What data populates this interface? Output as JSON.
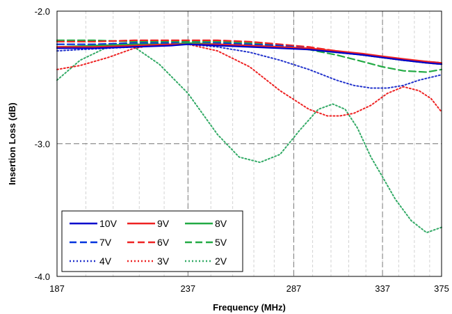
{
  "chart_data": {
    "type": "line",
    "xlabel": "Frequency (MHz)",
    "ylabel": "Insertion Loss (dB)",
    "xlim": [
      187,
      375
    ],
    "ylim": [
      -4.0,
      -2.0
    ],
    "x_tick_labels": [
      "187",
      "237",
      "287",
      "337",
      "375"
    ],
    "y_tick_labels": [
      "-2.0",
      "-3.0",
      "-4.0"
    ],
    "x_ticks": [
      187,
      237,
      287,
      337,
      375
    ],
    "y_ticks": [
      -2.0,
      -3.0,
      -4.0
    ],
    "x_scale": "log",
    "grid": true,
    "legend_position": "bottom-left",
    "series": [
      {
        "name": "10V",
        "color": "#0000cc",
        "dash": "solid",
        "x": [
          187,
          200,
          215,
          230,
          237,
          250,
          265,
          280,
          295,
          310,
          325,
          337,
          350,
          365,
          375
        ],
        "y": [
          -2.28,
          -2.28,
          -2.27,
          -2.26,
          -2.25,
          -2.26,
          -2.27,
          -2.28,
          -2.29,
          -2.31,
          -2.33,
          -2.35,
          -2.37,
          -2.39,
          -2.4
        ]
      },
      {
        "name": "9V",
        "color": "#ee2222",
        "dash": "solid",
        "x": [
          187,
          200,
          215,
          230,
          237,
          250,
          265,
          280,
          295,
          310,
          325,
          337,
          350,
          365,
          375
        ],
        "y": [
          -2.27,
          -2.27,
          -2.26,
          -2.25,
          -2.25,
          -2.25,
          -2.26,
          -2.27,
          -2.28,
          -2.3,
          -2.32,
          -2.34,
          -2.36,
          -2.38,
          -2.39
        ]
      },
      {
        "name": "8V",
        "color": "#22aa44",
        "dash": "solid",
        "x": [
          187,
          200,
          215,
          230,
          237,
          250,
          265,
          280,
          295,
          310,
          325,
          337,
          350,
          365,
          375
        ],
        "y": [
          -2.27,
          -2.26,
          -2.25,
          -2.25,
          -2.24,
          -2.25,
          -2.26,
          -2.27,
          -2.29,
          -2.31,
          -2.33,
          -2.35,
          -2.37,
          -2.39,
          -2.4
        ]
      },
      {
        "name": "7V",
        "color": "#0033dd",
        "dash": "dashed",
        "x": [
          187,
          200,
          215,
          230,
          237,
          250,
          265,
          280,
          295,
          310,
          325,
          337,
          350,
          365,
          375
        ],
        "y": [
          -2.25,
          -2.25,
          -2.24,
          -2.24,
          -2.24,
          -2.24,
          -2.25,
          -2.26,
          -2.28,
          -2.31,
          -2.33,
          -2.35,
          -2.37,
          -2.38,
          -2.39
        ]
      },
      {
        "name": "6V",
        "color": "#ee2222",
        "dash": "dashed",
        "x": [
          187,
          200,
          215,
          230,
          237,
          250,
          265,
          280,
          295,
          310,
          325,
          337,
          350,
          365,
          375
        ],
        "y": [
          -2.23,
          -2.23,
          -2.22,
          -2.22,
          -2.22,
          -2.22,
          -2.23,
          -2.25,
          -2.27,
          -2.3,
          -2.33,
          -2.35,
          -2.37,
          -2.39,
          -2.4
        ]
      },
      {
        "name": "5V",
        "color": "#22aa44",
        "dash": "dashed",
        "x": [
          187,
          200,
          215,
          230,
          237,
          250,
          265,
          280,
          295,
          310,
          325,
          337,
          350,
          365,
          375
        ],
        "y": [
          -2.22,
          -2.22,
          -2.23,
          -2.23,
          -2.23,
          -2.23,
          -2.24,
          -2.26,
          -2.29,
          -2.33,
          -2.38,
          -2.42,
          -2.45,
          -2.46,
          -2.44
        ]
      },
      {
        "name": "4V",
        "color": "#2233cc",
        "dash": "dotted",
        "x": [
          187,
          195,
          205,
          215,
          225,
          237,
          250,
          265,
          280,
          295,
          310,
          320,
          330,
          340,
          350,
          360,
          375
        ],
        "y": [
          -2.3,
          -2.29,
          -2.28,
          -2.27,
          -2.26,
          -2.25,
          -2.27,
          -2.31,
          -2.37,
          -2.44,
          -2.52,
          -2.56,
          -2.58,
          -2.58,
          -2.56,
          -2.52,
          -2.48
        ]
      },
      {
        "name": "3V",
        "color": "#ee2222",
        "dash": "dotted",
        "x": [
          187,
          195,
          205,
          215,
          225,
          237,
          250,
          265,
          280,
          295,
          305,
          312,
          320,
          330,
          340,
          350,
          360,
          368,
          375
        ],
        "y": [
          -2.44,
          -2.41,
          -2.35,
          -2.28,
          -2.25,
          -2.25,
          -2.3,
          -2.42,
          -2.6,
          -2.74,
          -2.79,
          -2.79,
          -2.77,
          -2.71,
          -2.62,
          -2.57,
          -2.6,
          -2.66,
          -2.76
        ]
      },
      {
        "name": "2V",
        "color": "#33aa66",
        "dash": "dotted",
        "x": [
          187,
          195,
          205,
          215,
          225,
          237,
          250,
          260,
          270,
          280,
          290,
          300,
          308,
          315,
          322,
          330,
          337,
          345,
          355,
          365,
          375
        ],
        "y": [
          -2.52,
          -2.37,
          -2.27,
          -2.27,
          -2.4,
          -2.62,
          -2.93,
          -3.1,
          -3.14,
          -3.08,
          -2.9,
          -2.74,
          -2.7,
          -2.74,
          -2.88,
          -3.1,
          -3.25,
          -3.42,
          -3.58,
          -3.67,
          -3.63
        ]
      }
    ]
  }
}
